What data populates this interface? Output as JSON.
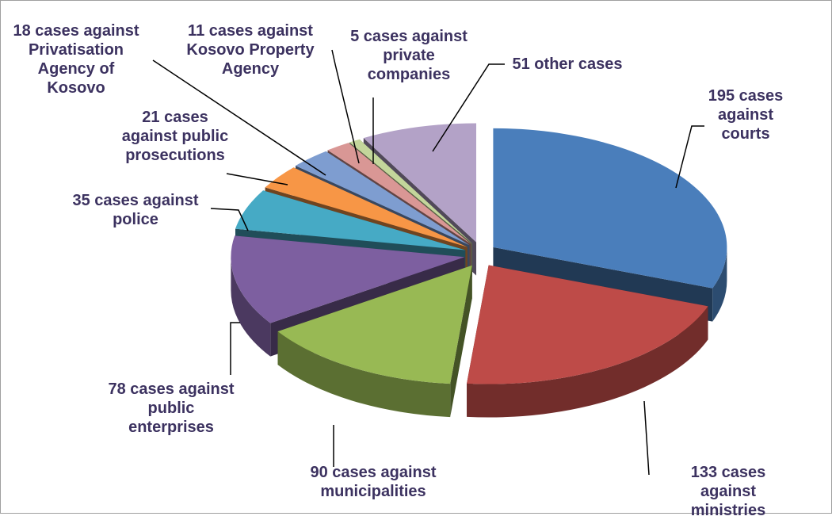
{
  "chart_data": {
    "type": "pie",
    "values": [
      195,
      133,
      90,
      78,
      35,
      21,
      18,
      11,
      5,
      51
    ],
    "value_labels": [
      "195 cases against\ncourts",
      "133 cases against\nministries",
      "90 cases against\nmunicipalities",
      "78 cases against\npublic\nenterprises",
      "35 cases against\npolice",
      "21 cases\nagainst public\nprosecutions",
      "18 cases against\nPrivatisation\nAgency of\nKosovo",
      "11 cases against\nKosovo Property\nAgency",
      "5 cases against\nprivate\ncompanies",
      "51 other cases"
    ],
    "colors": [
      "#4a7ebb",
      "#be4b48",
      "#98b954",
      "#7d5fa0",
      "#46aac5",
      "#f79646",
      "#7e9dd0",
      "#d99795",
      "#c3d69b",
      "#b3a2c7"
    ]
  }
}
